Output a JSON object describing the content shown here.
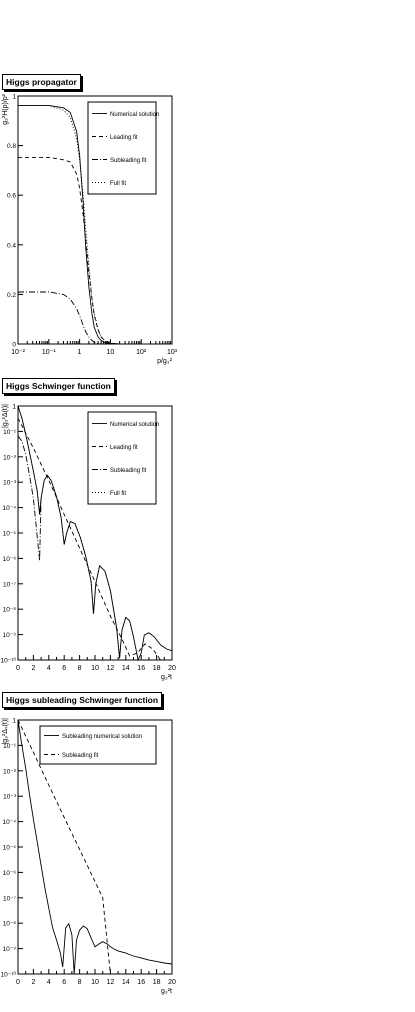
{
  "chart_data": [
    {
      "type": "line",
      "title": "Higgs propagator",
      "xlabel": "p/g₃²",
      "ylabel": "g₃²H(p)/p²",
      "xscale": "log",
      "xlim": [
        0.01,
        1000
      ],
      "ylim": [
        0,
        1.05
      ],
      "x_ticks": [
        "10⁻²",
        "10⁻¹",
        "1",
        "10",
        "10²",
        "10³"
      ],
      "y_ticks": [
        "0",
        "0.2",
        "0.4",
        "0.6",
        "0.8",
        "1"
      ],
      "legend": [
        "Numerical solution",
        "Leading fit",
        "Subleading fit",
        "Full fit"
      ],
      "legend_placement": "top-right",
      "series": [
        {
          "name": "Numerical solution",
          "x": [
            0.01,
            0.1,
            0.3,
            0.5,
            0.8,
            1.0,
            1.3,
            1.6,
            2.0,
            2.5,
            3.0,
            4.0,
            5.0,
            7.0,
            10,
            20,
            1000
          ],
          "y": [
            1.01,
            1.01,
            1.0,
            0.98,
            0.9,
            0.8,
            0.6,
            0.4,
            0.24,
            0.13,
            0.07,
            0.03,
            0.015,
            0.005,
            0.002,
            0.0,
            0.0
          ]
        },
        {
          "name": "Leading fit",
          "x": [
            0.01,
            0.1,
            0.3,
            0.5,
            0.8,
            1.0,
            1.3,
            1.6,
            2.0,
            2.5,
            3.0,
            4.0,
            5.0,
            7.0,
            10,
            20,
            1000
          ],
          "y": [
            0.79,
            0.79,
            0.78,
            0.77,
            0.72,
            0.66,
            0.55,
            0.43,
            0.3,
            0.19,
            0.12,
            0.06,
            0.03,
            0.01,
            0.003,
            0.0,
            0.0
          ]
        },
        {
          "name": "Subleading fit",
          "x": [
            0.01,
            0.1,
            0.3,
            0.5,
            0.8,
            1.0,
            1.3,
            1.6,
            2.0,
            2.5,
            3.0,
            4.0,
            5.0,
            7.0,
            10,
            1000
          ],
          "y": [
            0.22,
            0.22,
            0.21,
            0.19,
            0.15,
            0.12,
            0.08,
            0.05,
            0.03,
            0.015,
            0.008,
            0.003,
            0.001,
            0.0,
            0.0,
            0.0
          ]
        },
        {
          "name": "Full fit",
          "x": [
            0.01,
            0.1,
            0.3,
            0.5,
            0.8,
            1.0,
            1.3,
            1.6,
            2.0,
            2.5,
            3.0,
            4.0,
            5.0,
            7.0,
            10,
            20,
            1000
          ],
          "y": [
            1.01,
            1.01,
            0.99,
            0.96,
            0.87,
            0.78,
            0.63,
            0.48,
            0.33,
            0.2,
            0.13,
            0.063,
            0.031,
            0.01,
            0.003,
            0.0,
            0.0
          ]
        }
      ]
    },
    {
      "type": "line",
      "title": "Higgs Schwinger function",
      "xlabel": "g₃²t",
      "ylabel": "|g₃²Δ(t)|",
      "yscale": "log",
      "xlim": [
        0,
        20
      ],
      "ylim": [
        1e-10,
        10
      ],
      "x_ticks": [
        "0",
        "2",
        "4",
        "6",
        "8",
        "10",
        "12",
        "14",
        "16",
        "18",
        "20"
      ],
      "y_ticks": [
        "10⁻¹⁰",
        "10⁻⁹",
        "10⁻⁸",
        "10⁻⁷",
        "10⁻⁶",
        "10⁻⁵",
        "10⁻⁴",
        "10⁻³",
        "10⁻²",
        "10⁻¹",
        "1"
      ],
      "legend": [
        "Numerical solution",
        "Leading fit",
        "Subleading fit",
        "Full fit"
      ],
      "legend_placement": "top-right",
      "series": [
        {
          "name": "Numerical solution",
          "x": [
            0,
            0.5,
            1.0,
            1.5,
            2.0,
            2.5,
            2.8,
            3.0,
            3.4,
            3.8,
            4.3,
            5.0,
            5.6,
            6.0,
            6.3,
            6.8,
            7.4,
            8.1,
            8.8,
            9.5,
            9.8,
            10.1,
            10.6,
            11.3,
            12.0,
            12.8,
            13.2,
            13.5,
            14.0,
            14.5,
            15.0,
            15.6,
            16.0,
            16.4,
            17.0,
            17.7,
            18.5,
            19.3,
            20.0
          ],
          "y": [
            10,
            3,
            0.6,
            0.1,
            0.015,
            0.002,
            0.0002,
            0.001,
            0.006,
            0.01,
            0.006,
            0.0012,
            0.00015,
            1e-05,
            3e-05,
            0.0001,
            8e-05,
            2e-05,
            3e-06,
            2.5e-07,
            1e-08,
            2e-07,
            1.2e-06,
            7e-07,
            1e-07,
            2.5e-09,
            1.2e-10,
            2e-09,
            7e-09,
            5e-09,
            1e-09,
            8e-11,
            2e-10,
            1.2e-09,
            1.5e-09,
            1e-09,
            4.5e-10,
            3e-10,
            2.5e-10
          ]
        },
        {
          "name": "Leading fit",
          "x": [
            0,
            2,
            4,
            6,
            8,
            10,
            12,
            13.5,
            14.5,
            15.5,
            16.5,
            17.5,
            18.5,
            20
          ],
          "y": [
            3,
            0.15,
            0.006,
            0.0002,
            7e-06,
            2.5e-07,
            8e-09,
            8e-10,
            1.5e-10,
            2e-10,
            5e-10,
            3e-10,
            1e-10,
            1e-10
          ]
        },
        {
          "name": "Subleading fit",
          "x": [
            0,
            0.5,
            1.0,
            1.5,
            2.0,
            2.3,
            2.6,
            2.8,
            3.0
          ],
          "y": [
            0.5,
            0.3,
            0.08,
            0.01,
            0.001,
            0.0001,
            1e-05,
            2e-06,
            0.001
          ]
        },
        {
          "name": "Full fit",
          "x": [
            0,
            0.5,
            1.0,
            1.5,
            2.0,
            2.5,
            2.8,
            3.0,
            3.4,
            3.8,
            4.3,
            5.0,
            5.6,
            6.0,
            6.3,
            6.8,
            7.4,
            8.1,
            8.8,
            9.5,
            9.8,
            10.1,
            10.6,
            11.3,
            12.0,
            12.8,
            13.2,
            13.5,
            14.0,
            14.5,
            15.0
          ],
          "y": [
            10,
            3,
            0.6,
            0.1,
            0.015,
            0.002,
            0.0002,
            0.001,
            0.006,
            0.01,
            0.006,
            0.0012,
            0.00015,
            1e-05,
            3e-05,
            0.0001,
            8e-05,
            2e-05,
            3e-06,
            2.5e-07,
            1e-08,
            2e-07,
            1.2e-06,
            7e-07,
            1e-07,
            2.5e-09,
            1.2e-10,
            2e-09,
            7e-09,
            5e-09,
            1e-09
          ]
        }
      ]
    },
    {
      "type": "line",
      "title": "Higgs subleading Schwinger function",
      "xlabel": "g₃²t",
      "ylabel": "|g₃²Δₛ(t)|",
      "yscale": "log",
      "xlim": [
        0,
        20
      ],
      "ylim": [
        1e-10,
        10
      ],
      "x_ticks": [
        "0",
        "2",
        "4",
        "6",
        "8",
        "10",
        "12",
        "14",
        "16",
        "18",
        "20"
      ],
      "y_ticks": [
        "10⁻¹⁰",
        "10⁻⁹",
        "10⁻⁸",
        "10⁻⁷",
        "10⁻⁶",
        "10⁻⁵",
        "10⁻⁴",
        "10⁻³",
        "10⁻²",
        "10⁻¹",
        "1"
      ],
      "legend": [
        "Subleading numerical solution",
        "Subleading fit"
      ],
      "legend_placement": "top-right",
      "series": [
        {
          "name": "Subleading numerical solution",
          "x": [
            0,
            0.5,
            1.0,
            1.5,
            2.0,
            2.5,
            3.0,
            3.5,
            4.0,
            4.5,
            5.0,
            5.5,
            5.8,
            6.2,
            6.6,
            7.0,
            7.3,
            7.6,
            8.0,
            8.5,
            9.0,
            9.6,
            10.0,
            10.5,
            11.0,
            11.6,
            12.0,
            12.5,
            13.0,
            14.0,
            15.0,
            16.0,
            17.0,
            18.0,
            19.0,
            20.0
          ],
          "y": [
            10,
            0.8,
            0.08,
            0.006,
            0.0005,
            5e-05,
            5e-06,
            5e-07,
            7e-08,
            1e-08,
            3e-09,
            8e-10,
            2e-10,
            1e-08,
            1.5e-08,
            5e-09,
            1e-10,
            3e-09,
            8e-09,
            1.2e-08,
            9e-09,
            3e-09,
            1.5e-09,
            2e-09,
            2.5e-09,
            2e-09,
            1.5e-09,
            1.2e-09,
            1e-09,
            8e-10,
            6e-10,
            5e-10,
            4e-10,
            3.5e-10,
            3e-10,
            2.7e-10
          ]
        },
        {
          "name": "Subleading fit",
          "x": [
            0,
            2,
            4,
            6,
            8,
            10,
            11,
            12
          ],
          "y": [
            10,
            0.4,
            0.015,
            0.0006,
            2.5e-05,
            1e-06,
            2e-07,
            5e-11
          ]
        }
      ]
    }
  ]
}
